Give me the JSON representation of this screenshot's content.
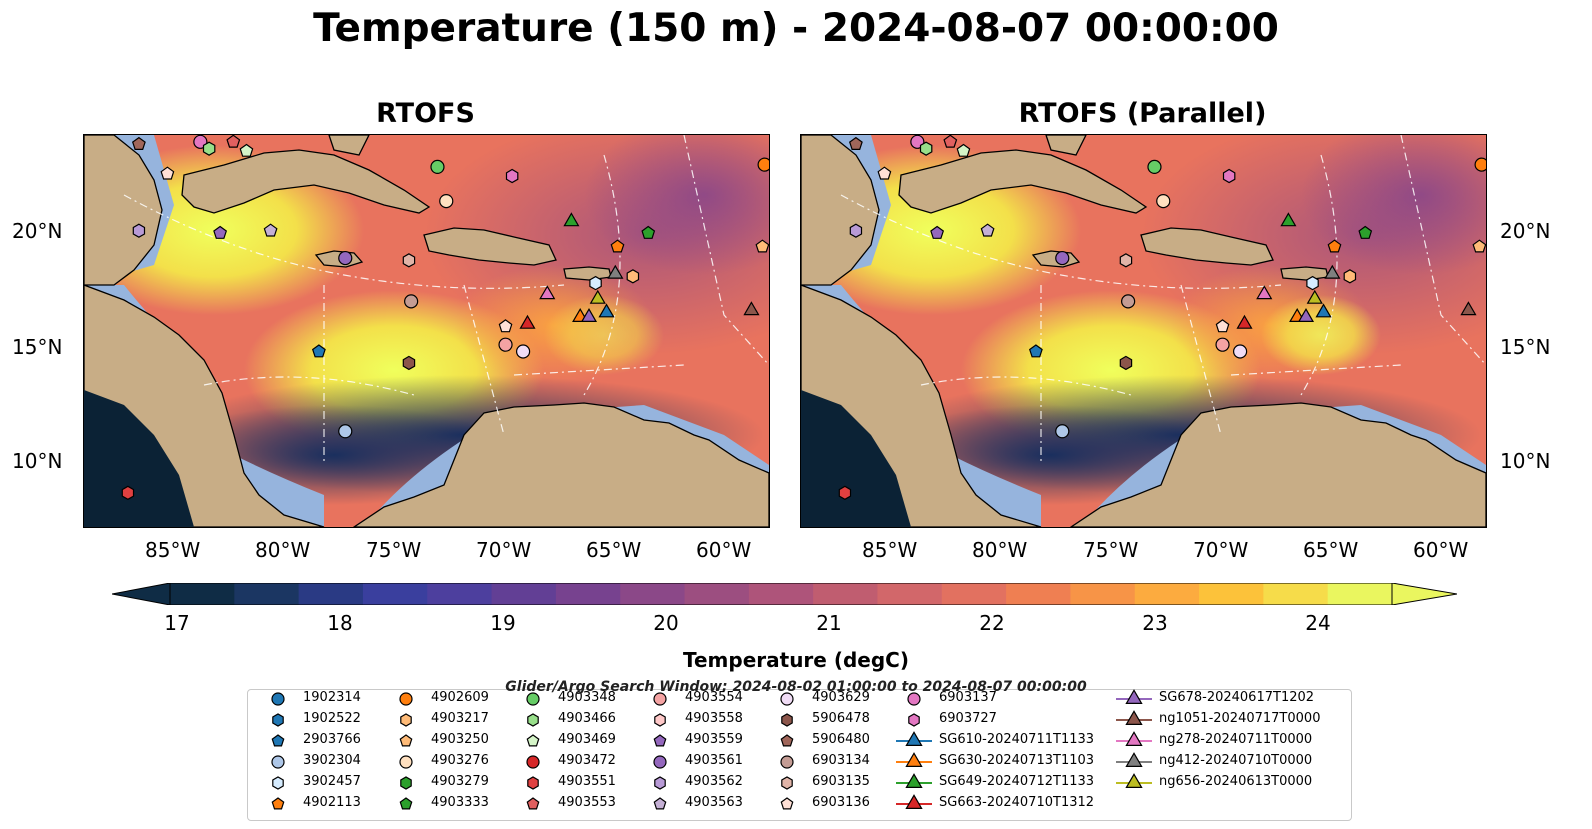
{
  "title": "Temperature (150 m) - 2024-08-07 00:00:00",
  "panels": [
    {
      "title": "RTOFS"
    },
    {
      "title": "RTOFS (Parallel)"
    }
  ],
  "lat_labels": [
    "20°N",
    "15°N",
    "10°N"
  ],
  "lon_labels": [
    "85°W",
    "80°W",
    "75°W",
    "70°W",
    "65°W",
    "60°W"
  ],
  "colorbar": {
    "label": "Temperature (degC)",
    "ticks": [
      "17",
      "18",
      "19",
      "20",
      "21",
      "22",
      "23",
      "24"
    ],
    "colors": [
      "#0f2c45",
      "#1b3662",
      "#2a3a84",
      "#3a3f9e",
      "#4d3f9e",
      "#623f95",
      "#77428f",
      "#8b4888",
      "#9c4e80",
      "#ae547a",
      "#c05d70",
      "#d2676a",
      "#e27160",
      "#ef7f52",
      "#f79447",
      "#fcab3f",
      "#fcc23a",
      "#f6dc4a",
      "#eaf65f"
    ]
  },
  "search_window": "Glider/Argo Search Window: 2024-08-02 01:00:00 to 2024-08-07 00:00:00",
  "legend": [
    {
      "label": "1902314",
      "shape": "circle",
      "color": "#1f77b4"
    },
    {
      "label": "1902522",
      "shape": "hexagon",
      "color": "#1f77b4"
    },
    {
      "label": "2903766",
      "shape": "pentagon",
      "color": "#1f77b4"
    },
    {
      "label": "3902304",
      "shape": "circle",
      "color": "#aec7e8"
    },
    {
      "label": "3902457",
      "shape": "hexagon",
      "color": "#d6ecff"
    },
    {
      "label": "4902113",
      "shape": "pentagon",
      "color": "#ff7f0e"
    },
    {
      "label": "4902609",
      "shape": "circle",
      "color": "#ff7f0e"
    },
    {
      "label": "4903217",
      "shape": "hexagon",
      "color": "#ffbb78"
    },
    {
      "label": "4903250",
      "shape": "pentagon",
      "color": "#ffbb78"
    },
    {
      "label": "4903276",
      "shape": "circle",
      "color": "#ffe0c0"
    },
    {
      "label": "4903279",
      "shape": "hexagon",
      "color": "#2ca02c"
    },
    {
      "label": "4903333",
      "shape": "pentagon",
      "color": "#2ca02c"
    },
    {
      "label": "4903348",
      "shape": "circle",
      "color": "#66cc66"
    },
    {
      "label": "4903466",
      "shape": "hexagon",
      "color": "#98df8a"
    },
    {
      "label": "4903469",
      "shape": "pentagon",
      "color": "#d5f5c8"
    },
    {
      "label": "4903472",
      "shape": "circle",
      "color": "#d62728"
    },
    {
      "label": "4903551",
      "shape": "hexagon",
      "color": "#e04040"
    },
    {
      "label": "4903553",
      "shape": "pentagon",
      "color": "#e06060"
    },
    {
      "label": "4903554",
      "shape": "circle",
      "color": "#f4a3a3"
    },
    {
      "label": "4903558",
      "shape": "hexagon",
      "color": "#ffc9c9"
    },
    {
      "label": "4903559",
      "shape": "pentagon",
      "color": "#9467bd"
    },
    {
      "label": "4903561",
      "shape": "circle",
      "color": "#9467bd"
    },
    {
      "label": "4903562",
      "shape": "hexagon",
      "color": "#b89ad6"
    },
    {
      "label": "4903563",
      "shape": "pentagon",
      "color": "#c5b0d5"
    },
    {
      "label": "4903629",
      "shape": "circle",
      "color": "#f0dcf5"
    },
    {
      "label": "5906478",
      "shape": "hexagon",
      "color": "#8c564b"
    },
    {
      "label": "5906480",
      "shape": "pentagon",
      "color": "#a0665a"
    },
    {
      "label": "6903134",
      "shape": "circle",
      "color": "#c49c94"
    },
    {
      "label": "6903135",
      "shape": "hexagon",
      "color": "#e0b4a8"
    },
    {
      "label": "6903136",
      "shape": "pentagon",
      "color": "#ffe0d6"
    },
    {
      "label": "6903137",
      "shape": "circle",
      "color": "#e377c2"
    },
    {
      "label": "6903727",
      "shape": "hexagon",
      "color": "#e377c2"
    },
    {
      "label": "SG610-20240711T1133",
      "shape": "triangle",
      "color": "#1f77b4"
    },
    {
      "label": "SG630-20240713T1103",
      "shape": "triangle",
      "color": "#ff7f0e"
    },
    {
      "label": "SG649-20240712T1133",
      "shape": "triangle",
      "color": "#2ca02c"
    },
    {
      "label": "SG663-20240710T1312",
      "shape": "triangle",
      "color": "#d62728"
    },
    {
      "label": "SG678-20240617T1202",
      "shape": "triangle",
      "color": "#9467bd"
    },
    {
      "label": "ng1051-20240717T0000",
      "shape": "triangle",
      "color": "#8c564b"
    },
    {
      "label": "ng278-20240711T0000",
      "shape": "triangle",
      "color": "#e377c2"
    },
    {
      "label": "ng412-20240710T0000",
      "shape": "triangle",
      "color": "#7f7f7f"
    },
    {
      "label": "ng656-20240613T0000",
      "shape": "triangle",
      "color": "#bcbd22"
    }
  ],
  "markers": [
    {
      "id": "6903137",
      "lon": -83.9,
      "lat": 23.9
    },
    {
      "id": "4903466",
      "lon": -83.5,
      "lat": 23.6
    },
    {
      "id": "4903553",
      "lon": -82.4,
      "lat": 23.9
    },
    {
      "id": "4903469",
      "lon": -81.8,
      "lat": 23.5
    },
    {
      "id": "5906480",
      "lon": -86.7,
      "lat": 23.8
    },
    {
      "id": "6903136",
      "lon": -85.4,
      "lat": 22.5
    },
    {
      "id": "4903348",
      "lon": -73.1,
      "lat": 22.8
    },
    {
      "id": "6903727",
      "lon": -69.7,
      "lat": 22.4
    },
    {
      "id": "4903276",
      "lon": -72.7,
      "lat": 21.3
    },
    {
      "id": "4902609",
      "lon": -58.2,
      "lat": 22.9
    },
    {
      "id": "SG649-20240712T1133",
      "lon": -67.0,
      "lat": 20.4
    },
    {
      "id": "4903562",
      "lon": -86.7,
      "lat": 20.0
    },
    {
      "id": "4903559",
      "lon": -83.0,
      "lat": 19.9
    },
    {
      "id": "4903563",
      "lon": -80.7,
      "lat": 20.0
    },
    {
      "id": "4903333",
      "lon": -63.5,
      "lat": 19.9
    },
    {
      "id": "4902113",
      "lon": -64.9,
      "lat": 19.3
    },
    {
      "id": "4903250",
      "lon": -58.3,
      "lat": 19.3
    },
    {
      "id": "4903561",
      "lon": -77.3,
      "lat": 18.8
    },
    {
      "id": "6903135",
      "lon": -74.4,
      "lat": 18.7
    },
    {
      "id": "ng412-20240710T0000",
      "lon": -65.0,
      "lat": 18.1
    },
    {
      "id": "4903217",
      "lon": -64.2,
      "lat": 18.0
    },
    {
      "id": "3902457",
      "lon": -65.9,
      "lat": 17.7
    },
    {
      "id": "6903134",
      "lon": -74.3,
      "lat": 16.9
    },
    {
      "id": "ng278-20240711T0000",
      "lon": -68.1,
      "lat": 17.2
    },
    {
      "id": "ng656-20240613T0000",
      "lon": -65.8,
      "lat": 17.0
    },
    {
      "id": "ng1051-20240717T0000",
      "lon": -58.8,
      "lat": 16.5
    },
    {
      "id": "SG630-20240713T1103",
      "lon": -66.6,
      "lat": 16.2
    },
    {
      "id": "SG678-20240617T1202",
      "lon": -66.2,
      "lat": 16.2
    },
    {
      "id": "SG610-20240711T1133",
      "lon": -65.4,
      "lat": 16.4
    },
    {
      "id": "SG663-20240710T1312",
      "lon": -69.0,
      "lat": 15.9
    },
    {
      "id": "6903136b",
      "lon": -70.0,
      "lat": 15.8
    },
    {
      "id": "4903554",
      "lon": -70.0,
      "lat": 15.0
    },
    {
      "id": "4903629",
      "lon": -69.2,
      "lat": 14.7
    },
    {
      "id": "2903766",
      "lon": -78.5,
      "lat": 14.7
    },
    {
      "id": "5906478",
      "lon": -74.4,
      "lat": 14.2
    },
    {
      "id": "3902304",
      "lon": -77.3,
      "lat": 11.2
    },
    {
      "id": "4903551",
      "lon": -87.2,
      "lat": 8.5
    }
  ]
}
